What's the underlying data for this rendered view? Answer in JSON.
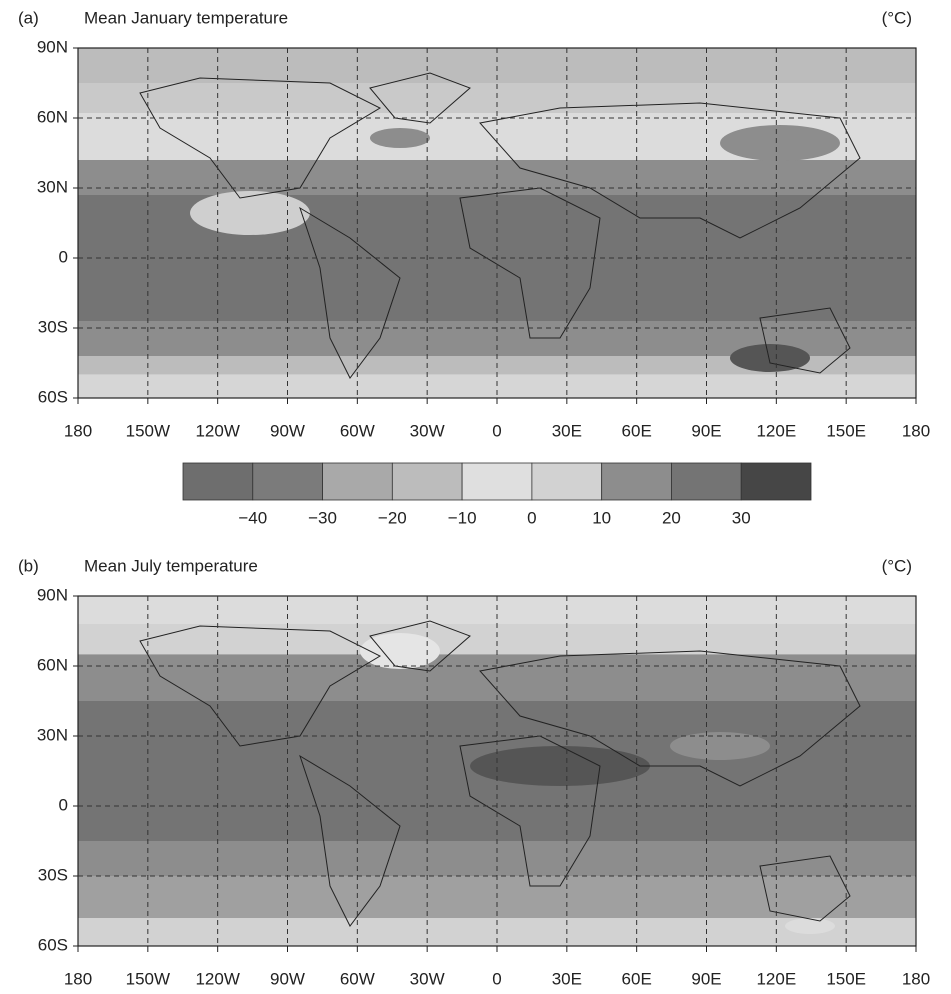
{
  "panels": [
    {
      "label": "(a)",
      "title": "Mean January temperature",
      "unit": "(°C)"
    },
    {
      "label": "(b)",
      "title": "Mean July temperature",
      "unit": "(°C)"
    }
  ],
  "lat_labels": [
    "90N",
    "60N",
    "30N",
    "0",
    "30S",
    "60S"
  ],
  "lon_labels": [
    "180",
    "150W",
    "120W",
    "90W",
    "60W",
    "30W",
    "0",
    "30E",
    "60E",
    "90E",
    "120E",
    "150E",
    "180"
  ],
  "colorbar": {
    "colors": [
      "#6e6e6e",
      "#7b7b7b",
      "#a9a9a9",
      "#bcbcbc",
      "#dfdfdf",
      "#d2d2d2",
      "#8d8d8d",
      "#747474",
      "#464646"
    ],
    "labels": [
      "−40",
      "−30",
      "−20",
      "−10",
      "0",
      "10",
      "20",
      "30"
    ]
  }
}
